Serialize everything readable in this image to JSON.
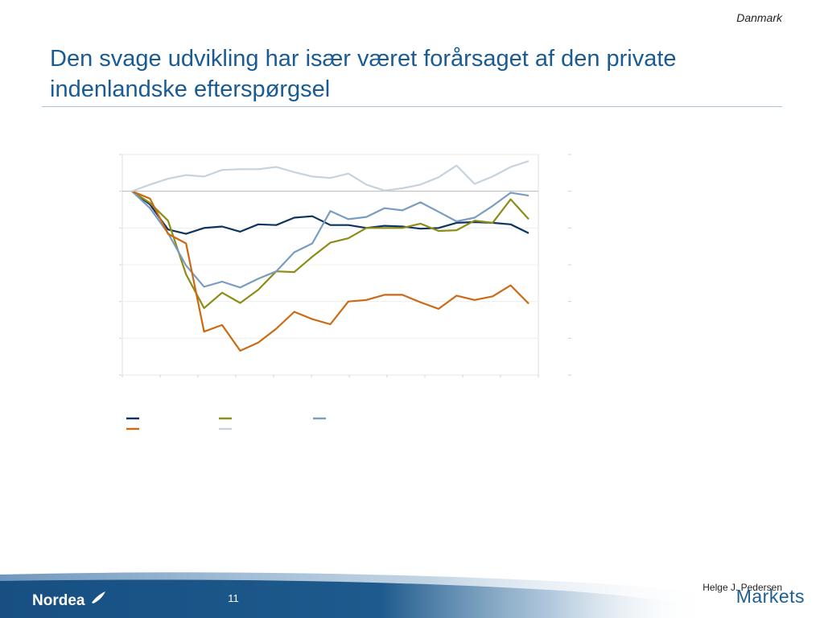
{
  "header": {
    "region": "Danmark",
    "title_line1": "Den svage udvikling har især været forårsaget af den private",
    "title_line2": "indenlandske efterspørgsel"
  },
  "footer": {
    "page_number": "11",
    "author": "Helge J. Pedersen",
    "brand": "Nordea",
    "division": "Markets"
  },
  "colors": {
    "title": "#1a5b94",
    "navy": "#0d3460",
    "olive": "#8c8c17",
    "steel": "#7a9cbf",
    "orange": "#cc6a14",
    "pale": "#c6d3de",
    "footer_band": "#1a5587"
  },
  "chart_data": {
    "type": "line",
    "title": "",
    "xlabel": "",
    "ylabel": "",
    "x": [
      1,
      2,
      3,
      4,
      5,
      6,
      7,
      8,
      9,
      10,
      11,
      12,
      13,
      14,
      15,
      16,
      17,
      18,
      19,
      20,
      21,
      22,
      23
    ],
    "ylim": [
      -25,
      5
    ],
    "grid": true,
    "legend_position": "bottom",
    "series": [
      {
        "color": "#0d3460",
        "values": [
          0,
          -1.8,
          -5.2,
          -5.8,
          -5.0,
          -4.8,
          -5.5,
          -4.5,
          -4.6,
          -3.6,
          -3.4,
          -4.6,
          -4.6,
          -5.0,
          -4.7,
          -4.8,
          -5.1,
          -5.0,
          -4.3,
          -4.2,
          -4.3,
          -4.5,
          -5.7
        ]
      },
      {
        "color": "#8c8c17",
        "values": [
          0,
          -1.6,
          -4.0,
          -11.3,
          -15.9,
          -13.8,
          -15.2,
          -13.4,
          -10.9,
          -11.0,
          -8.9,
          -7.0,
          -6.4,
          -5.0,
          -5.0,
          -5.0,
          -4.4,
          -5.4,
          -5.3,
          -4.0,
          -4.3,
          -1.1,
          -3.8
        ]
      },
      {
        "color": "#7a9cbf",
        "values": [
          0,
          -2.3,
          -5.7,
          -10.1,
          -13.0,
          -12.3,
          -13.1,
          -11.9,
          -10.9,
          -8.3,
          -7.1,
          -2.7,
          -3.8,
          -3.5,
          -2.3,
          -2.6,
          -1.5,
          -2.8,
          -4.1,
          -3.6,
          -2.0,
          -0.2,
          -0.6
        ]
      },
      {
        "color": "#cc6a14",
        "values": [
          0,
          -1.0,
          -5.8,
          -7.1,
          -19.1,
          -18.2,
          -21.7,
          -20.6,
          -18.7,
          -16.4,
          -17.4,
          -18.1,
          -15.0,
          -14.8,
          -14.1,
          -14.1,
          -15.1,
          -16.0,
          -14.2,
          -14.8,
          -14.3,
          -12.8,
          -15.3
        ]
      },
      {
        "color": "#c6d3de",
        "values": [
          0,
          0.9,
          1.7,
          2.2,
          2.0,
          2.9,
          3.0,
          3.0,
          3.3,
          2.6,
          2.0,
          1.8,
          2.4,
          0.9,
          0.1,
          0.4,
          0.9,
          1.9,
          3.5,
          1.0,
          2.0,
          3.3,
          4.1
        ]
      }
    ]
  }
}
